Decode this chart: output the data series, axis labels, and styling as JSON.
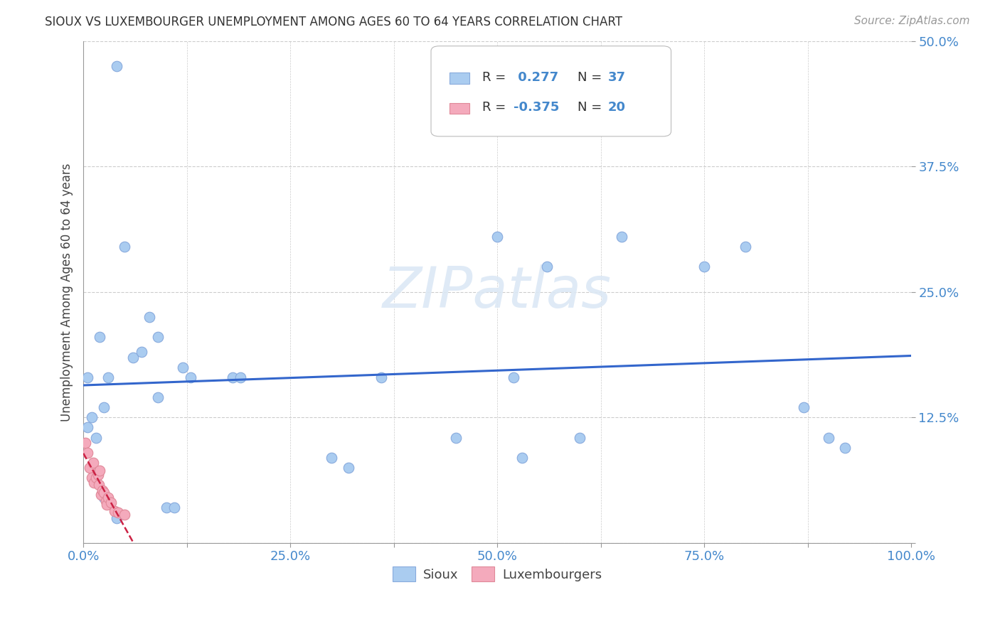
{
  "title": "SIOUX VS LUXEMBOURGER UNEMPLOYMENT AMONG AGES 60 TO 64 YEARS CORRELATION CHART",
  "source": "Source: ZipAtlas.com",
  "ylabel": "Unemployment Among Ages 60 to 64 years",
  "xlim": [
    0.0,
    1.0
  ],
  "ylim": [
    0.0,
    0.5
  ],
  "xticks": [
    0.0,
    0.125,
    0.25,
    0.375,
    0.5,
    0.625,
    0.75,
    0.875,
    1.0
  ],
  "xticklabels": [
    "0.0%",
    "",
    "25.0%",
    "",
    "50.0%",
    "",
    "75.0%",
    "",
    "100.0%"
  ],
  "yticks": [
    0.0,
    0.125,
    0.25,
    0.375,
    0.5
  ],
  "yticklabels": [
    "",
    "12.5%",
    "25.0%",
    "37.5%",
    "50.0%"
  ],
  "sioux_color": "#aaccf0",
  "sioux_edge_color": "#88aadd",
  "luxembourger_color": "#f4aabc",
  "luxembourger_edge_color": "#e08898",
  "trendline_sioux_color": "#3366cc",
  "trendline_lux_color": "#cc2244",
  "legend_r_sioux_label": "R = ",
  "legend_r_sioux_val": " 0.277",
  "legend_n_sioux_label": "N = ",
  "legend_n_sioux_val": "37",
  "legend_r_lux_label": "R = ",
  "legend_r_lux_val": "-0.375",
  "legend_n_lux_label": "N = ",
  "legend_n_lux_val": "20",
  "sioux_x": [
    0.005,
    0.01,
    0.015,
    0.02,
    0.025,
    0.025,
    0.03,
    0.04,
    0.04,
    0.05,
    0.06,
    0.07,
    0.08,
    0.09,
    0.09,
    0.1,
    0.11,
    0.12,
    0.13,
    0.18,
    0.19,
    0.3,
    0.32,
    0.36,
    0.45,
    0.5,
    0.52,
    0.53,
    0.56,
    0.6,
    0.65,
    0.75,
    0.8,
    0.87,
    0.9,
    0.92,
    0.005
  ],
  "sioux_y": [
    0.115,
    0.125,
    0.105,
    0.205,
    0.135,
    0.045,
    0.165,
    0.475,
    0.025,
    0.295,
    0.185,
    0.19,
    0.225,
    0.205,
    0.145,
    0.035,
    0.035,
    0.175,
    0.165,
    0.165,
    0.165,
    0.085,
    0.075,
    0.165,
    0.105,
    0.305,
    0.165,
    0.085,
    0.275,
    0.105,
    0.305,
    0.275,
    0.295,
    0.135,
    0.105,
    0.095,
    0.165
  ],
  "lux_x": [
    0.002,
    0.005,
    0.008,
    0.01,
    0.012,
    0.013,
    0.015,
    0.018,
    0.019,
    0.02,
    0.021,
    0.023,
    0.025,
    0.027,
    0.028,
    0.03,
    0.033,
    0.038,
    0.042,
    0.05
  ],
  "lux_y": [
    0.1,
    0.09,
    0.075,
    0.065,
    0.08,
    0.06,
    0.065,
    0.068,
    0.058,
    0.072,
    0.048,
    0.052,
    0.05,
    0.042,
    0.038,
    0.045,
    0.04,
    0.032,
    0.03,
    0.028
  ],
  "marker_size": 110,
  "background_color": "#ffffff",
  "grid_color": "#cccccc",
  "watermark": "ZIPatlas",
  "watermark_color": "#dce8f5"
}
